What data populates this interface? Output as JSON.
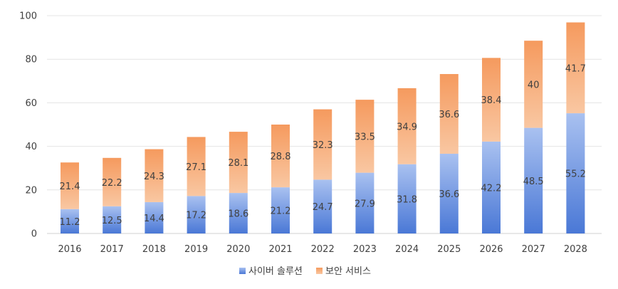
{
  "chart_data": {
    "type": "bar",
    "stacked": true,
    "categories": [
      "2016",
      "2017",
      "2018",
      "2019",
      "2020",
      "2021",
      "2022",
      "2023",
      "2024",
      "2025",
      "2026",
      "2027",
      "2028"
    ],
    "series": [
      {
        "name": "사이버 솔루션",
        "values": [
          11.2,
          12.5,
          14.4,
          17.2,
          18.6,
          21.2,
          24.7,
          27.9,
          31.8,
          36.6,
          42.2,
          48.5,
          55.2
        ],
        "color_top": "#a9c1f0",
        "color_bottom": "#4a78d6"
      },
      {
        "name": "보안 서비스",
        "values": [
          21.4,
          22.2,
          24.3,
          27.1,
          28.1,
          28.8,
          32.3,
          33.5,
          34.9,
          36.6,
          38.4,
          40,
          41.7
        ],
        "color_top": "#f59a5e",
        "color_bottom": "#f9c7a2"
      }
    ],
    "y_ticks": [
      "0",
      "20",
      "40",
      "60",
      "80",
      "100"
    ],
    "ylim": [
      0,
      100
    ],
    "grid": true,
    "legend_position": "bottom"
  }
}
